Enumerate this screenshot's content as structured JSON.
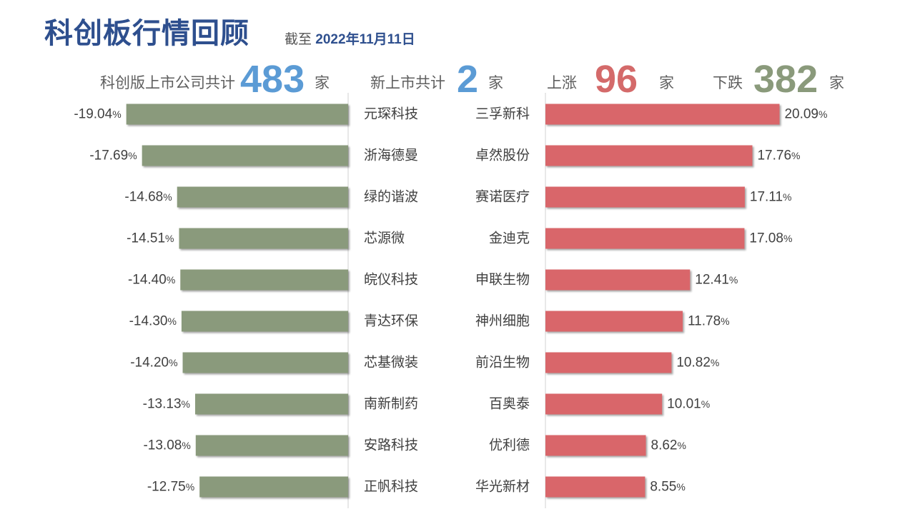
{
  "header": {
    "title": "科创板行情回顾",
    "date_prefix": "截至",
    "date_value": "2022年11月11日"
  },
  "stats": {
    "listed_label": "科创版上市公司共计",
    "listed_value": "483",
    "listed_unit": "家",
    "new_label": "新上市共计",
    "new_value": "2",
    "new_unit": "家",
    "up_label": "上涨",
    "up_value": "96",
    "up_unit": "家",
    "down_label": "下跌",
    "down_value": "382",
    "down_unit": "家"
  },
  "colors": {
    "title": "#2E4F8E",
    "listed": "#5B9BD5",
    "new": "#5B9BD5",
    "up": "#D46A6A",
    "down": "#8A9A7B",
    "down_bar": "#8A9A7B",
    "up_bar": "#D9666A",
    "text": "#404040",
    "axis": "#D0D0D0"
  },
  "chart_data": [
    {
      "type": "bar",
      "orientation": "horizontal",
      "direction": "left",
      "categories": [
        "元琛科技",
        "浙海德曼",
        "绿的谐波",
        "芯源微",
        "皖仪科技",
        "青达环保",
        "芯基微装",
        "南新制药",
        "安路科技",
        "正帆科技"
      ],
      "values": [
        -19.04,
        -17.69,
        -14.68,
        -14.51,
        -14.4,
        -14.3,
        -14.2,
        -13.13,
        -13.08,
        -12.75
      ],
      "labels": [
        "-19.04%",
        "-17.69%",
        "-14.68%",
        "-14.51%",
        "-14.40%",
        "-14.30%",
        "-14.20%",
        "-13.13%",
        "-13.08%",
        "-12.75%"
      ],
      "xlim": [
        -20,
        0
      ]
    },
    {
      "type": "bar",
      "orientation": "horizontal",
      "direction": "right",
      "categories": [
        "三孚新科",
        "卓然股份",
        "赛诺医疗",
        "金迪克",
        "申联生物",
        "神州细胞",
        "前沿生物",
        "百奥泰",
        "优利德",
        "华光新材"
      ],
      "values": [
        20.09,
        17.76,
        17.11,
        17.08,
        12.41,
        11.78,
        10.82,
        10.01,
        8.62,
        8.55
      ],
      "labels": [
        "20.09%",
        "17.76%",
        "17.11%",
        "17.08%",
        "12.41%",
        "11.78%",
        "10.82%",
        "10.01%",
        "8.62%",
        "8.55%"
      ],
      "xlim": [
        0,
        20.09
      ]
    }
  ]
}
